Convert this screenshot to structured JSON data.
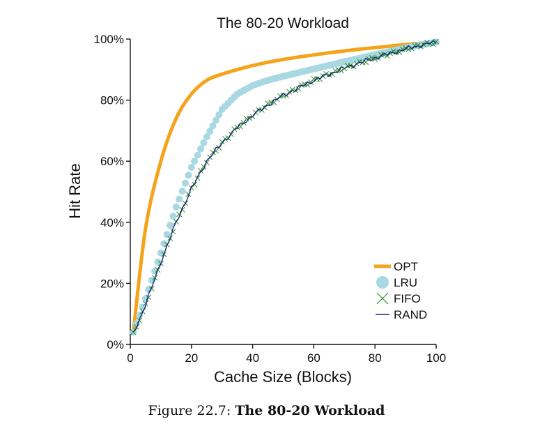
{
  "chart_data": {
    "type": "line",
    "title": "The 80-20 Workload",
    "xlabel": "Cache Size (Blocks)",
    "ylabel": "Hit Rate",
    "xlim": [
      0,
      100
    ],
    "ylim": [
      0,
      100
    ],
    "xticks": [
      0,
      20,
      40,
      60,
      80,
      100
    ],
    "xtick_labels": [
      "0",
      "20",
      "40",
      "60",
      "80",
      "100"
    ],
    "yticks": [
      0,
      20,
      40,
      60,
      80,
      100
    ],
    "ytick_labels": [
      "0%",
      "20%",
      "40%",
      "60%",
      "80%",
      "100%"
    ],
    "grid": false,
    "legend_position": "bottom-right",
    "x": [
      1,
      5,
      10,
      15,
      20,
      25,
      30,
      35,
      40,
      45,
      50,
      55,
      60,
      65,
      70,
      75,
      80,
      85,
      90,
      95,
      100
    ],
    "series": [
      {
        "name": "OPT",
        "color": "#f5a31a",
        "style": "line",
        "values": [
          4,
          38,
          60,
          74,
          82,
          86.5,
          88.5,
          90,
          91.3,
          92.4,
          93.3,
          94.1,
          94.8,
          95.5,
          96.1,
          96.7,
          97.2,
          97.7,
          98.2,
          98.6,
          99
        ]
      },
      {
        "name": "LRU",
        "color": "#a8d8e2",
        "style": "dots",
        "values": [
          4,
          15,
          30,
          45,
          58,
          68,
          77,
          82,
          84.8,
          86.5,
          87.8,
          89,
          90.2,
          91.4,
          92.6,
          93.7,
          94.9,
          96,
          97.1,
          98.1,
          99
        ]
      },
      {
        "name": "FIFO",
        "color": "#2e8b2e",
        "style": "cross",
        "values": [
          3.5,
          13,
          27,
          40,
          51,
          60,
          66,
          71,
          75,
          78.5,
          81.5,
          84,
          86.5,
          88.5,
          90.5,
          92.2,
          93.8,
          95.3,
          96.7,
          98,
          99
        ]
      },
      {
        "name": "RAND",
        "color": "#1a237e",
        "style": "line",
        "values": [
          3.5,
          13,
          27,
          40,
          51,
          60,
          66,
          71,
          75,
          78.5,
          81.5,
          84,
          86.5,
          88.5,
          90.5,
          92.2,
          93.8,
          95.3,
          96.7,
          98,
          99
        ]
      }
    ]
  },
  "caption": {
    "prefix": "Figure 22.7:",
    "title": "The 80-20 Workload"
  }
}
